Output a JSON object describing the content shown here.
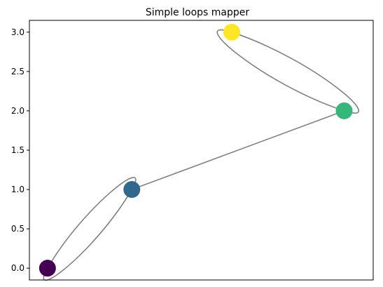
{
  "chart_data": {
    "type": "scatter",
    "title": "Simple loops mapper",
    "xlabel": "",
    "ylabel": "",
    "ylim": [
      -0.15,
      3.15
    ],
    "xlim": [
      0,
      1
    ],
    "yticks": [
      0.0,
      0.5,
      1.0,
      1.5,
      2.0,
      2.5,
      3.0
    ],
    "ytick_labels": [
      "0.0",
      "0.5",
      "1.0",
      "1.5",
      "2.0",
      "2.5",
      "3.0"
    ],
    "grid": false,
    "legend": "none",
    "nodes": [
      {
        "id": 0,
        "x": 0.04,
        "y": 0.0,
        "color": "#440154"
      },
      {
        "id": 1,
        "x": 0.31,
        "y": 1.0,
        "color": "#31688e"
      },
      {
        "id": 2,
        "x": 0.99,
        "y": 2.0,
        "color": "#35b779"
      },
      {
        "id": 3,
        "x": 0.63,
        "y": 3.0,
        "color": "#fde725"
      }
    ],
    "edges": [
      {
        "source": 0,
        "target": 1,
        "kind": "loop"
      },
      {
        "source": 1,
        "target": 2,
        "kind": "straight"
      },
      {
        "source": 2,
        "target": 3,
        "kind": "loop"
      }
    ],
    "edge_color": "#808080"
  }
}
